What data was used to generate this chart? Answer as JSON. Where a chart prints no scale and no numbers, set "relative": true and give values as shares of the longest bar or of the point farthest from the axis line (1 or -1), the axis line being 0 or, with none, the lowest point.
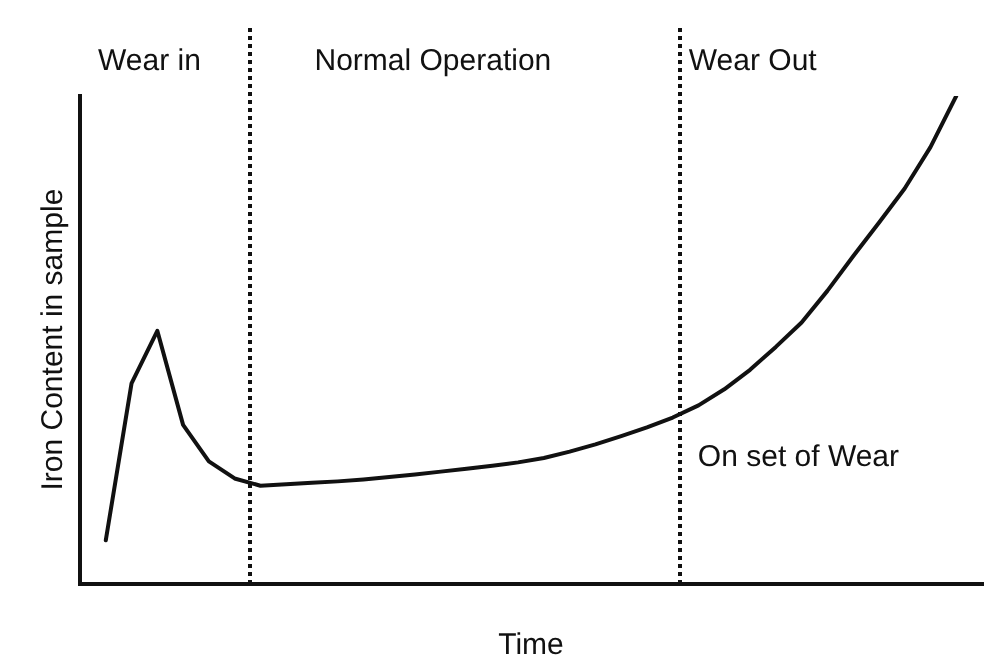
{
  "chart_data": {
    "type": "line",
    "relative": true,
    "xlabel": "Time",
    "ylabel": "Iron Content in sample",
    "grid": false,
    "legend": false,
    "marker": "none",
    "line_style": "solid",
    "categories": [
      null,
      null,
      null,
      null,
      null,
      null,
      null,
      null,
      null,
      null,
      null,
      null,
      null,
      null,
      null,
      null,
      null,
      null,
      null,
      null,
      null,
      null,
      null,
      null,
      null,
      null,
      null,
      null,
      null,
      null,
      null,
      null,
      null,
      null,
      null,
      null
    ],
    "series": [
      {
        "color": "#111111",
        "values": [
          null,
          0.088,
          0.41,
          0.518,
          0.325,
          0.25,
          0.215,
          0.2,
          0.203,
          0.206,
          0.209,
          0.213,
          0.218,
          0.223,
          0.229,
          0.235,
          0.241,
          0.248,
          0.257,
          0.27,
          0.285,
          0.302,
          0.32,
          0.34,
          0.365,
          0.398,
          0.438,
          0.485,
          0.535,
          0.6,
          0.671,
          0.74,
          0.81,
          0.895,
          1,
          null
        ]
      }
    ],
    "annotations": [
      "Wear in",
      "Normal Operation",
      "Wear Out",
      "On set of Wear"
    ]
  }
}
